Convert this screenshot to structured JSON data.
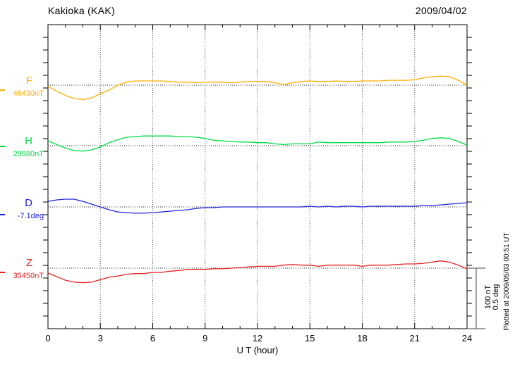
{
  "header": {
    "title": "Kakioka (KAK)",
    "date": "2009/04/02"
  },
  "chart_data": {
    "type": "line",
    "title": "Kakioka (KAK)",
    "date": "2009/04/02",
    "xlabel": "U T (hour)",
    "x_range_hours": [
      0,
      24
    ],
    "x_ticks": [
      0,
      3,
      6,
      9,
      12,
      15,
      18,
      21,
      24
    ],
    "grid": "dotted vertical lines every 3 hours, dotted horizontal baseline per component",
    "scale_bar": {
      "line1": "100 nT",
      "line2": "0.5 deg",
      "nT_per_bar": 100,
      "deg_per_bar": 0.5
    },
    "hours": [
      0,
      0.5,
      1,
      1.5,
      2,
      2.5,
      3,
      3.5,
      4,
      4.5,
      5,
      5.5,
      6,
      6.5,
      7,
      7.5,
      8,
      8.5,
      9,
      9.5,
      10,
      10.5,
      11,
      11.5,
      12,
      12.5,
      13,
      13.5,
      14,
      14.5,
      15,
      15.5,
      16,
      16.5,
      17,
      17.5,
      18,
      18.5,
      19,
      19.5,
      20,
      20.5,
      21,
      21.5,
      22,
      22.5,
      23,
      23.5,
      24
    ],
    "series": [
      {
        "id": "F",
        "label": "F",
        "value_label": "46430nT",
        "baseline_value": 46430,
        "unit": "nT",
        "scale_per_bar": 100,
        "color": "#FFAE00",
        "values": [
          46428,
          46420,
          46413,
          46408,
          46406,
          46409,
          46416,
          46422,
          46430,
          46435,
          46437,
          46437,
          46437,
          46437,
          46436,
          46435,
          46435,
          46434,
          46435,
          46435,
          46435,
          46434,
          46435,
          46436,
          46436,
          46436,
          46434,
          46431,
          46434,
          46436,
          46437,
          46436,
          46436,
          46437,
          46436,
          46436,
          46437,
          46437,
          46437,
          46438,
          46438,
          46438,
          46439,
          46442,
          46444,
          46445,
          46444,
          46438,
          46430
        ]
      },
      {
        "id": "H",
        "label": "H",
        "value_label": "29980nT",
        "baseline_value": 29980,
        "unit": "nT",
        "scale_per_bar": 100,
        "color": "#00DD44",
        "values": [
          29988,
          29982,
          29976,
          29972,
          29971,
          29973,
          29978,
          29985,
          29990,
          29994,
          29995,
          29996,
          29996,
          29996,
          29996,
          29995,
          29995,
          29994,
          29992,
          29989,
          29988,
          29987,
          29986,
          29986,
          29985,
          29985,
          29983,
          29982,
          29983,
          29983,
          29983,
          29986,
          29985,
          29985,
          29985,
          29985,
          29985,
          29985,
          29985,
          29986,
          29986,
          29986,
          29987,
          29989,
          29992,
          29993,
          29992,
          29987,
          29981
        ]
      },
      {
        "id": "D",
        "label": "D",
        "value_label": "-7.1deg",
        "baseline_value": -7.1,
        "unit": "deg",
        "scale_per_bar": 0.5,
        "color": "#2222DD",
        "values": [
          -7.054,
          -7.042,
          -7.036,
          -7.036,
          -7.054,
          -7.077,
          -7.1,
          -7.123,
          -7.141,
          -7.147,
          -7.152,
          -7.152,
          -7.147,
          -7.141,
          -7.135,
          -7.129,
          -7.123,
          -7.112,
          -7.106,
          -7.106,
          -7.1,
          -7.1,
          -7.1,
          -7.1,
          -7.1,
          -7.1,
          -7.1,
          -7.1,
          -7.1,
          -7.1,
          -7.094,
          -7.1,
          -7.094,
          -7.1,
          -7.094,
          -7.094,
          -7.1,
          -7.094,
          -7.094,
          -7.094,
          -7.094,
          -7.094,
          -7.094,
          -7.088,
          -7.088,
          -7.083,
          -7.077,
          -7.071,
          -7.065
        ]
      },
      {
        "id": "Z",
        "label": "Z",
        "value_label": "35450nT",
        "baseline_value": 35450,
        "unit": "nT",
        "scale_per_bar": 100,
        "color": "#E52222",
        "values": [
          35442,
          35436,
          35430,
          35427,
          35426,
          35427,
          35431,
          35435,
          35437,
          35440,
          35441,
          35441,
          35443,
          35443,
          35445,
          35446,
          35448,
          35448,
          35448,
          35449,
          35449,
          35450,
          35451,
          35452,
          35453,
          35453,
          35453,
          35455,
          35456,
          35455,
          35455,
          35453,
          35455,
          35455,
          35455,
          35455,
          35453,
          35455,
          35455,
          35455,
          35456,
          35457,
          35457,
          35458,
          35460,
          35462,
          35460,
          35455,
          35449
        ]
      }
    ]
  },
  "footer": {
    "plotted_at": "Plotted at 2009/05/03 00:51 UT"
  }
}
